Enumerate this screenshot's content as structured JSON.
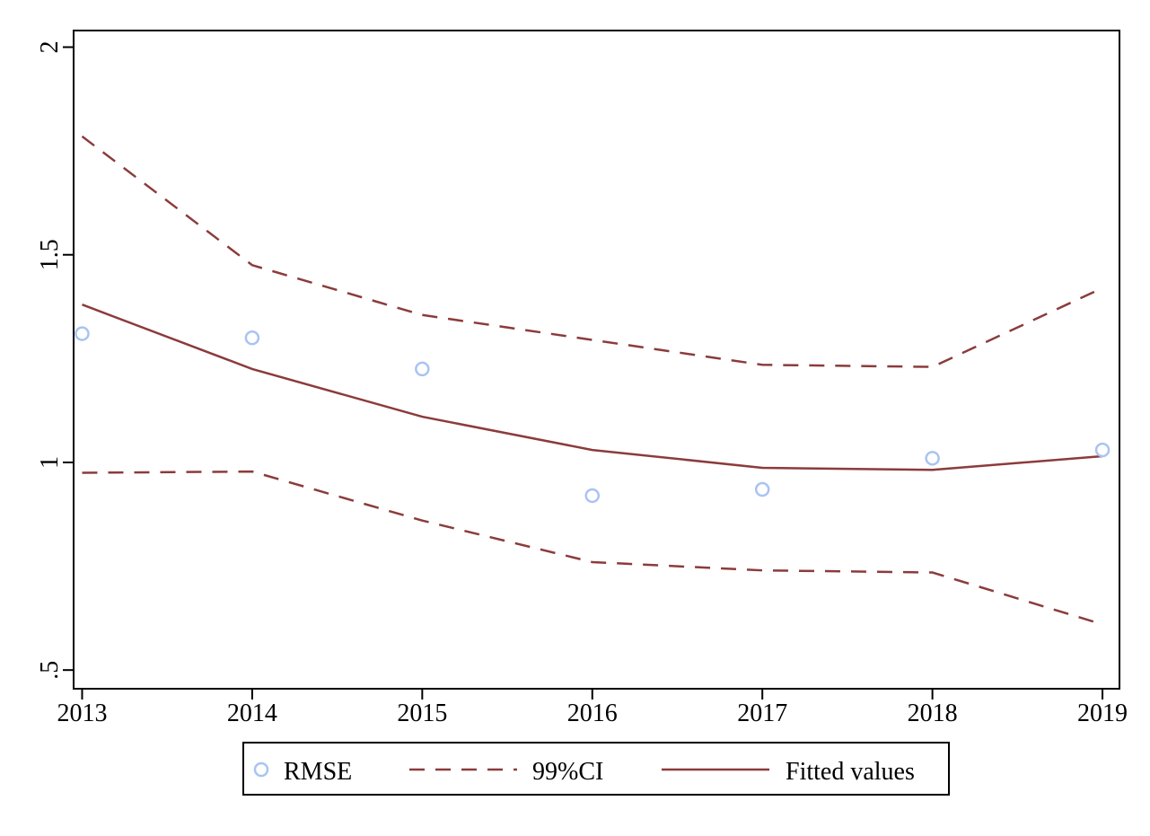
{
  "chart_data": {
    "type": "line",
    "title": "",
    "xlabel": "",
    "ylabel": "",
    "x": [
      2013,
      2014,
      2015,
      2016,
      2017,
      2018,
      2019
    ],
    "xlim": [
      2012.95,
      2019.1
    ],
    "ylim": [
      0.455,
      2.04
    ],
    "x_ticks": [
      {
        "value": 2013,
        "label": "2013"
      },
      {
        "value": 2014,
        "label": "2014"
      },
      {
        "value": 2015,
        "label": "2015"
      },
      {
        "value": 2016,
        "label": "2016"
      },
      {
        "value": 2017,
        "label": "2017"
      },
      {
        "value": 2018,
        "label": "2018"
      },
      {
        "value": 2019,
        "label": "2019"
      }
    ],
    "y_ticks": [
      {
        "value": 0.5,
        "label": ".5"
      },
      {
        "value": 1,
        "label": "1"
      },
      {
        "value": 1.5,
        "label": "1.5"
      },
      {
        "value": 2,
        "label": "2"
      }
    ],
    "grid": false,
    "legend_position": "bottom",
    "series": [
      {
        "name": "RMSE",
        "kind": "scatter",
        "color": "#a8c4f2",
        "values": [
          1.31,
          1.3,
          1.225,
          0.92,
          0.935,
          1.01,
          1.03
        ]
      },
      {
        "name": "99%CI",
        "kind": "dashed-band",
        "color": "#8c3b3b",
        "upper": [
          1.785,
          1.475,
          1.355,
          1.295,
          1.235,
          1.23,
          1.42
        ],
        "lower": [
          0.975,
          0.978,
          0.86,
          0.76,
          0.74,
          0.735,
          0.61
        ]
      },
      {
        "name": "Fitted values",
        "kind": "line",
        "color": "#8c3b3b",
        "values": [
          1.38,
          1.225,
          1.11,
          1.03,
          0.987,
          0.982,
          1.015
        ]
      }
    ]
  }
}
